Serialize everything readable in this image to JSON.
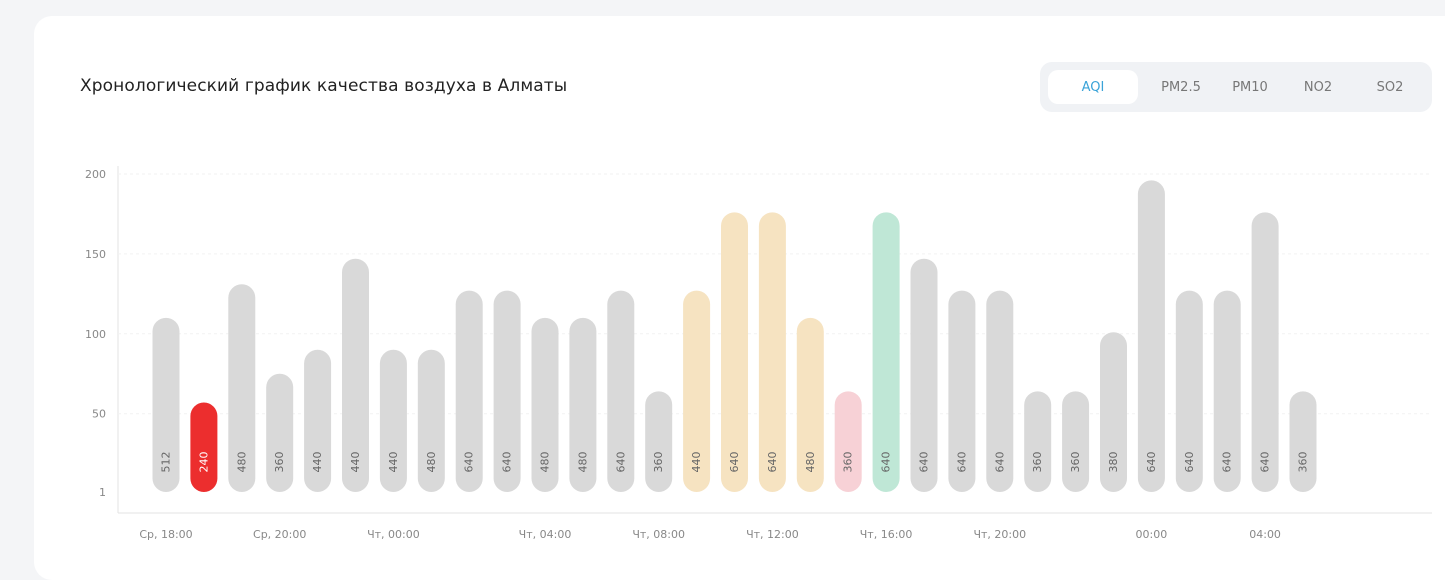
{
  "header": {
    "title": "Хронологический график качества воздуха в Алматы"
  },
  "tabs": [
    {
      "label": "AQI",
      "active": true
    },
    {
      "label": "PM2.5",
      "active": false
    },
    {
      "label": "PM10",
      "active": false
    },
    {
      "label": "NO2",
      "active": false
    },
    {
      "label": "SO2",
      "active": false
    }
  ],
  "colors": {
    "default": "#d9d9d9",
    "red": "#ec2e2e",
    "orange": "#f6e3c1",
    "pink": "#f7d1d6",
    "green": "#bfe7d6",
    "accent": "#3aa3d8"
  },
  "chart_data": {
    "type": "bar",
    "title": "Хронологический график качества воздуха в Алматы",
    "ylim": [
      1,
      200
    ],
    "yticks": [
      1,
      50,
      100,
      150,
      200
    ],
    "xticks": [
      "Ср, 18:00",
      "Ср, 20:00",
      "Чт, 00:00",
      "Чт, 04:00",
      "Чт, 08:00",
      "Чт, 12:00",
      "Чт, 16:00",
      "Чт, 20:00",
      "00:00",
      "04:00"
    ],
    "xtick_bar_index": [
      0,
      3,
      6,
      10,
      13,
      16,
      19,
      22,
      26,
      29
    ],
    "bars": [
      {
        "value": 110,
        "label": "512",
        "color": "default"
      },
      {
        "value": 57,
        "label": "240",
        "color": "red"
      },
      {
        "value": 131,
        "label": "480",
        "color": "default"
      },
      {
        "value": 75,
        "label": "360",
        "color": "default"
      },
      {
        "value": 90,
        "label": "440",
        "color": "default"
      },
      {
        "value": 147,
        "label": "440",
        "color": "default"
      },
      {
        "value": 90,
        "label": "440",
        "color": "default"
      },
      {
        "value": 90,
        "label": "480",
        "color": "default"
      },
      {
        "value": 127,
        "label": "640",
        "color": "default"
      },
      {
        "value": 127,
        "label": "640",
        "color": "default"
      },
      {
        "value": 110,
        "label": "480",
        "color": "default"
      },
      {
        "value": 110,
        "label": "480",
        "color": "default"
      },
      {
        "value": 127,
        "label": "640",
        "color": "default"
      },
      {
        "value": 64,
        "label": "360",
        "color": "default"
      },
      {
        "value": 127,
        "label": "440",
        "color": "orange"
      },
      {
        "value": 176,
        "label": "640",
        "color": "orange"
      },
      {
        "value": 176,
        "label": "640",
        "color": "orange"
      },
      {
        "value": 110,
        "label": "480",
        "color": "orange"
      },
      {
        "value": 64,
        "label": "360",
        "color": "pink"
      },
      {
        "value": 176,
        "label": "640",
        "color": "green"
      },
      {
        "value": 147,
        "label": "640",
        "color": "default"
      },
      {
        "value": 127,
        "label": "640",
        "color": "default"
      },
      {
        "value": 127,
        "label": "640",
        "color": "default"
      },
      {
        "value": 64,
        "label": "360",
        "color": "default"
      },
      {
        "value": 64,
        "label": "360",
        "color": "default"
      },
      {
        "value": 101,
        "label": "380",
        "color": "default"
      },
      {
        "value": 196,
        "label": "640",
        "color": "default"
      },
      {
        "value": 127,
        "label": "640",
        "color": "default"
      },
      {
        "value": 127,
        "label": "640",
        "color": "default"
      },
      {
        "value": 176,
        "label": "640",
        "color": "default"
      },
      {
        "value": 64,
        "label": "360",
        "color": "default"
      }
    ]
  }
}
